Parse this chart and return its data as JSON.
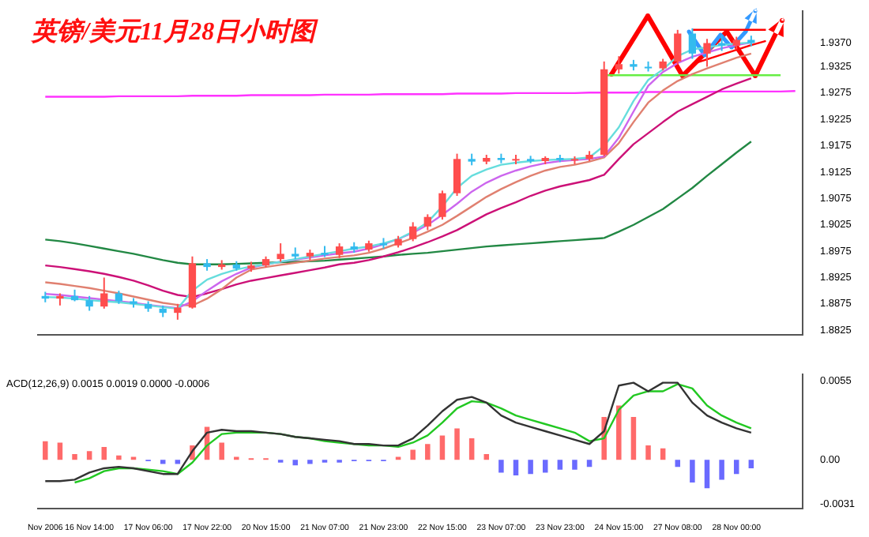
{
  "chart_data": [
    {
      "type": "candlestick",
      "title": "英镑/美元11月28日小时图",
      "categories": [
        null,
        null,
        null,
        null,
        null,
        null,
        null,
        null,
        null,
        null,
        null,
        null,
        null,
        null,
        null,
        null,
        null,
        null,
        null,
        null,
        null,
        null,
        null,
        null,
        null,
        null,
        null,
        null,
        null,
        null,
        null,
        null,
        null,
        null,
        null,
        null,
        null,
        null,
        null,
        null,
        null,
        null,
        null,
        null,
        null,
        null,
        null,
        null,
        null,
        null,
        null,
        null
      ],
      "ohlc": [
        [
          1.889,
          1.8898,
          1.8878,
          1.8885
        ],
        [
          1.8885,
          1.8895,
          1.8872,
          1.889
        ],
        [
          1.889,
          1.8902,
          1.888,
          1.8882
        ],
        [
          1.8882,
          1.889,
          1.8862,
          1.887
        ],
        [
          1.887,
          1.8925,
          1.8866,
          1.8895
        ],
        [
          1.8895,
          1.89,
          1.8875,
          1.888
        ],
        [
          1.888,
          1.8886,
          1.8868,
          1.8875
        ],
        [
          1.8875,
          1.888,
          1.886,
          1.8866
        ],
        [
          1.8866,
          1.8872,
          1.885,
          1.8858
        ],
        [
          1.8858,
          1.8875,
          1.8845,
          1.8868
        ],
        [
          1.8868,
          1.8965,
          1.8866,
          1.8952
        ],
        [
          1.8952,
          1.896,
          1.8938,
          1.8945
        ],
        [
          1.8945,
          1.8958,
          1.894,
          1.895
        ],
        [
          1.895,
          1.8956,
          1.8938,
          1.8942
        ],
        [
          1.8942,
          1.8955,
          1.8936,
          1.8948
        ],
        [
          1.8948,
          1.8965,
          1.8944,
          1.896
        ],
        [
          1.896,
          1.899,
          1.8955,
          1.897
        ],
        [
          1.897,
          1.8982,
          1.896,
          1.8965
        ],
        [
          1.8965,
          1.8978,
          1.8958,
          1.8972
        ],
        [
          1.8972,
          1.8985,
          1.8964,
          1.8968
        ],
        [
          1.8968,
          1.899,
          1.8962,
          1.8984
        ],
        [
          1.8984,
          1.8992,
          1.8972,
          1.8978
        ],
        [
          1.8978,
          1.8995,
          1.8974,
          1.899
        ],
        [
          1.899,
          1.9,
          1.898,
          1.8986
        ],
        [
          1.8986,
          1.9004,
          1.8982,
          1.8998
        ],
        [
          1.8998,
          1.903,
          1.8994,
          1.9022
        ],
        [
          1.9022,
          1.9045,
          1.9015,
          1.904
        ],
        [
          1.904,
          1.909,
          1.9035,
          1.9085
        ],
        [
          1.9085,
          1.916,
          1.908,
          1.915
        ],
        [
          1.915,
          1.916,
          1.9138,
          1.9145
        ],
        [
          1.9145,
          1.9158,
          1.914,
          1.9152
        ],
        [
          1.9152,
          1.916,
          1.9142,
          1.9148
        ],
        [
          1.9148,
          1.9158,
          1.914,
          1.915
        ],
        [
          1.915,
          1.9156,
          1.9142,
          1.9146
        ],
        [
          1.9146,
          1.9155,
          1.914,
          1.9152
        ],
        [
          1.9152,
          1.9158,
          1.9144,
          1.9148
        ],
        [
          1.9148,
          1.9155,
          1.914,
          1.915
        ],
        [
          1.915,
          1.9165,
          1.9146,
          1.9158
        ],
        [
          1.9158,
          1.9335,
          1.9155,
          1.932
        ],
        [
          1.932,
          1.9345,
          1.9312,
          1.933
        ],
        [
          1.933,
          1.9338,
          1.9318,
          1.9325
        ],
        [
          1.9325,
          1.9335,
          1.9316,
          1.9322
        ],
        [
          1.9322,
          1.934,
          1.9318,
          1.9335
        ],
        [
          1.9335,
          1.9395,
          1.933,
          1.9388
        ],
        [
          1.9388,
          1.9398,
          1.934,
          1.935
        ],
        [
          1.935,
          1.9378,
          1.9325,
          1.937
        ],
        [
          1.937,
          1.9385,
          1.9355,
          1.9365
        ],
        [
          1.9365,
          1.9382,
          1.9358,
          1.9376
        ],
        [
          1.9376,
          1.9384,
          1.9364,
          1.937
        ],
        null,
        null,
        null
      ],
      "colors": [
        "#33bbee",
        "#ff4d4d",
        "#33bbee",
        "#33bbee",
        "#ff4d4d",
        "#33bbee",
        "#33bbee",
        "#33bbee",
        "#33bbee",
        "#ff4d4d",
        "#ff4d4d",
        "#33bbee",
        "#ff4d4d",
        "#33bbee",
        "#ff4d4d",
        "#ff4d4d",
        "#ff4d4d",
        "#33bbee",
        "#ff4d4d",
        "#33bbee",
        "#ff4d4d",
        "#33bbee",
        "#ff4d4d",
        "#33bbee",
        "#ff4d4d",
        "#ff4d4d",
        "#ff4d4d",
        "#ff4d4d",
        "#ff4d4d",
        "#33bbee",
        "#ff4d4d",
        "#33bbee",
        "#ff4d4d",
        "#33bbee",
        "#ff4d4d",
        "#33bbee",
        "#ff4d4d",
        "#ff4d4d",
        "#ff4d4d",
        "#ff4d4d",
        "#33bbee",
        "#33bbee",
        "#ff4d4d",
        "#ff4d4d",
        "#33bbee",
        "#ff4d4d",
        "#33bbee",
        "#ff4d4d",
        "#33bbee",
        null,
        null,
        null
      ],
      "series": [
        {
          "type": "line",
          "color": "#66dddd",
          "values": [
            1.8888,
            1.8887,
            1.8885,
            1.8882,
            1.888,
            1.8878,
            1.8875,
            1.8872,
            1.8869,
            1.8866,
            1.89,
            1.8921,
            1.8932,
            1.894,
            1.8946,
            1.895,
            1.8955,
            1.896,
            1.8965,
            1.897,
            1.8975,
            1.898,
            1.8984,
            1.899,
            1.8998,
            1.9012,
            1.903,
            1.906,
            1.9095,
            1.9118,
            1.913,
            1.9139,
            1.9143,
            1.9146,
            1.9148,
            1.9149,
            1.915,
            1.9153,
            1.9175,
            1.921,
            1.926,
            1.93,
            1.932,
            1.9345,
            1.9358,
            1.9362,
            1.9366,
            1.9369,
            1.9371,
            null,
            null,
            null
          ]
        },
        {
          "type": "line",
          "color": "#cc66ee",
          "values": [
            1.8894,
            1.8892,
            1.8889,
            1.8886,
            1.8883,
            1.888,
            1.8877,
            1.8873,
            1.887,
            1.8867,
            1.888,
            1.89,
            1.8918,
            1.8932,
            1.8944,
            1.895,
            1.8955,
            1.8959,
            1.8963,
            1.8967,
            1.8971,
            1.8974,
            1.898,
            1.8988,
            1.8998,
            1.901,
            1.9025,
            1.9044,
            1.9065,
            1.9088,
            1.9105,
            1.9118,
            1.9128,
            1.9136,
            1.9142,
            1.9146,
            1.9148,
            1.915,
            1.9155,
            1.919,
            1.924,
            1.9289,
            1.9315,
            1.9332,
            1.9344,
            1.9352,
            1.936,
            1.9366,
            1.9371,
            null,
            null,
            null
          ]
        },
        {
          "type": "line",
          "color": "#e08070",
          "values": [
            1.8916,
            1.8913,
            1.8909,
            1.8905,
            1.89,
            1.8895,
            1.8889,
            1.8883,
            1.8877,
            1.8873,
            1.8872,
            1.8885,
            1.8903,
            1.8925,
            1.894,
            1.8945,
            1.8949,
            1.8953,
            1.8957,
            1.8961,
            1.8964,
            1.8967,
            1.8972,
            1.898,
            1.899,
            1.9,
            1.9012,
            1.9025,
            1.9042,
            1.906,
            1.9078,
            1.9093,
            1.9106,
            1.9118,
            1.9128,
            1.9135,
            1.9139,
            1.9145,
            1.9153,
            1.918,
            1.922,
            1.9257,
            1.928,
            1.9298,
            1.9311,
            1.9322,
            1.9332,
            1.9342,
            1.935,
            null,
            null,
            null
          ]
        },
        {
          "type": "line",
          "color": "#cc1177",
          "values": [
            1.8948,
            1.8945,
            1.8941,
            1.8937,
            1.8932,
            1.8926,
            1.8919,
            1.891,
            1.89,
            1.8892,
            1.8888,
            1.8895,
            1.8903,
            1.8912,
            1.8919,
            1.8924,
            1.8929,
            1.8934,
            1.8939,
            1.8944,
            1.895,
            1.8953,
            1.8958,
            1.8965,
            1.8973,
            1.8982,
            1.8992,
            1.9003,
            1.9015,
            1.903,
            1.9045,
            1.9057,
            1.9068,
            1.908,
            1.909,
            1.9098,
            1.9104,
            1.911,
            1.912,
            1.915,
            1.9178,
            1.9199,
            1.922,
            1.924,
            1.9254,
            1.9268,
            1.9282,
            1.9293,
            1.9303,
            null,
            null,
            null
          ]
        },
        {
          "type": "line",
          "color": "#228844",
          "values": [
            1.8997,
            1.8994,
            1.899,
            1.8985,
            1.898,
            1.8975,
            1.897,
            1.8964,
            1.8958,
            1.8953,
            1.895,
            1.895,
            1.895,
            1.8951,
            1.8952,
            1.8953,
            1.8954,
            1.8955,
            1.8956,
            1.8957,
            1.8959,
            1.8961,
            1.8963,
            1.8965,
            1.8968,
            1.897,
            1.8972,
            1.8975,
            1.8978,
            1.8981,
            1.8984,
            1.8986,
            1.8988,
            1.899,
            1.8992,
            1.8994,
            1.8996,
            1.8998,
            1.9,
            1.9012,
            1.9025,
            1.904,
            1.9055,
            1.9075,
            1.9095,
            1.9118,
            1.914,
            1.9162,
            1.9183,
            null,
            null,
            null
          ]
        },
        {
          "type": "line",
          "color": "#ff33ff",
          "values": [
            1.9268,
            1.9268,
            1.9268,
            1.9268,
            1.9268,
            1.9269,
            1.9269,
            1.9269,
            1.9269,
            1.9269,
            1.927,
            1.927,
            1.927,
            1.927,
            1.9271,
            1.9271,
            1.9271,
            1.9271,
            1.9271,
            1.9272,
            1.9272,
            1.9272,
            1.9272,
            1.9273,
            1.9273,
            1.9273,
            1.9273,
            1.9273,
            1.9274,
            1.9274,
            1.9274,
            1.9274,
            1.9275,
            1.9275,
            1.9275,
            1.9275,
            1.9275,
            1.9276,
            1.9276,
            1.9276,
            1.9276,
            1.9277,
            1.9277,
            1.9277,
            1.9277,
            1.9277,
            1.9278,
            1.9278,
            1.9278,
            1.9278,
            1.9278,
            1.9279
          ]
        },
        {
          "type": "line",
          "color": "#66ee44",
          "values": [
            null,
            null,
            null,
            null,
            null,
            null,
            null,
            null,
            null,
            null,
            null,
            null,
            null,
            null,
            null,
            null,
            null,
            null,
            null,
            null,
            null,
            null,
            null,
            null,
            null,
            null,
            null,
            null,
            null,
            null,
            null,
            null,
            null,
            null,
            null,
            null,
            null,
            null,
            1.9309,
            1.9309,
            1.9309,
            1.9309,
            1.9309,
            1.9309,
            1.9309,
            1.9309,
            1.9309,
            1.9309,
            1.9309,
            1.9309,
            1.9309,
            null
          ]
        },
        {
          "type": "line",
          "color": "#ff0000",
          "values": [
            null,
            null,
            null,
            null,
            null,
            null,
            null,
            null,
            null,
            null,
            null,
            null,
            null,
            null,
            null,
            null,
            null,
            null,
            null,
            null,
            null,
            null,
            null,
            null,
            null,
            null,
            null,
            null,
            null,
            null,
            null,
            null,
            null,
            null,
            null,
            null,
            null,
            null,
            null,
            null,
            null,
            null,
            null,
            null,
            1.9395,
            1.9395,
            1.9395,
            1.9395,
            1.9395,
            1.9395,
            null,
            null
          ]
        },
        {
          "type": "line",
          "color": "#ff0000",
          "values": [
            null,
            null,
            null,
            null,
            null,
            null,
            null,
            null,
            null,
            null,
            null,
            null,
            null,
            null,
            null,
            null,
            null,
            null,
            null,
            null,
            null,
            null,
            null,
            null,
            null,
            null,
            null,
            null,
            null,
            null,
            null,
            null,
            null,
            null,
            null,
            null,
            null,
            null,
            null,
            null,
            null,
            null,
            null,
            null,
            1.933,
            1.9339,
            1.9348,
            1.9357,
            1.9366,
            1.9374,
            null,
            null
          ]
        }
      ],
      "ylim": [
        1.8817,
        1.9431
      ],
      "yticks": [
        1.8825,
        1.8875,
        1.8925,
        1.8975,
        1.9025,
        1.9075,
        1.9125,
        1.9175,
        1.9225,
        1.9275,
        1.9325,
        {
          "value": 1.937,
          "label": "1.9370"
        }
      ]
    },
    {
      "type": "bar",
      "title": "ACD(12,26,9) 0.0015 0.0019 0.0000 -0.0006",
      "categories": [
        "Nov 2006",
        null,
        null,
        "16 Nov 14:00",
        null,
        null,
        null,
        "17 Nov 06:00",
        null,
        null,
        null,
        "17 Nov 22:00",
        null,
        null,
        null,
        "20 Nov 15:00",
        null,
        null,
        null,
        "21 Nov 07:00",
        null,
        null,
        null,
        "21 Nov 23:00",
        null,
        null,
        null,
        "22 Nov 15:00",
        null,
        null,
        null,
        "23 Nov 07:00",
        null,
        null,
        null,
        "23 Nov 23:00",
        null,
        null,
        null,
        "24 Nov 15:00",
        null,
        null,
        null,
        "27 Nov 08:00",
        null,
        null,
        null,
        "28 Nov 00:00",
        null,
        null,
        null,
        null
      ],
      "series": [
        {
          "type": "bar",
          "values": [
            0.0013,
            0.0012,
            0.0004,
            0.0006,
            0.0009,
            0.0003,
            0.0002,
            -0.0001,
            -0.0003,
            -0.0003,
            0.001,
            0.0023,
            0.0012,
            0.0002,
            0.0001,
            0.0001,
            -0.0002,
            -0.0004,
            -0.0003,
            -0.0002,
            -0.0002,
            -0.0001,
            -0.0001,
            -0.0001,
            0.0002,
            0.0007,
            0.0011,
            0.0017,
            0.0022,
            0.0015,
            0.0004,
            -0.0009,
            -0.0011,
            -0.001,
            -0.0009,
            -0.0007,
            -0.0007,
            -0.0005,
            0.003,
            0.0038,
            0.003,
            0.001,
            0.0008,
            -0.0005,
            -0.0016,
            -0.002,
            -0.0014,
            -0.001,
            -0.0006,
            null,
            null,
            null
          ],
          "colors": [
            "#ff6a6a",
            "#ff6a6a",
            "#ff6a6a",
            "#ff6a6a",
            "#ff6a6a",
            "#ff6a6a",
            "#ff6a6a",
            "#6a6aff",
            "#6a6aff",
            "#6a6aff",
            "#ff6a6a",
            "#ff6a6a",
            "#ff6a6a",
            "#ff6a6a",
            "#ff6a6a",
            "#ff6a6a",
            "#6a6aff",
            "#6a6aff",
            "#6a6aff",
            "#6a6aff",
            "#6a6aff",
            "#6a6aff",
            "#6a6aff",
            "#6a6aff",
            "#ff6a6a",
            "#ff6a6a",
            "#ff6a6a",
            "#ff6a6a",
            "#ff6a6a",
            "#ff6a6a",
            "#ff6a6a",
            "#6a6aff",
            "#6a6aff",
            "#6a6aff",
            "#6a6aff",
            "#6a6aff",
            "#6a6aff",
            "#6a6aff",
            "#ff6a6a",
            "#ff6a6a",
            "#ff6a6a",
            "#ff6a6a",
            "#ff6a6a",
            "#6a6aff",
            "#6a6aff",
            "#6a6aff",
            "#6a6aff",
            "#6a6aff",
            "#6a6aff",
            null,
            null,
            null
          ]
        },
        {
          "type": "line",
          "color": "#333333",
          "values": [
            -0.0015,
            -0.0015,
            -0.0014,
            -0.0009,
            -0.0006,
            -0.0005,
            -0.0006,
            -0.0008,
            -0.001,
            -0.001,
            0.0006,
            0.0019,
            0.0021,
            0.002,
            0.002,
            0.0019,
            0.0018,
            0.0016,
            0.0015,
            0.0014,
            0.0013,
            0.0011,
            0.0011,
            0.001,
            0.001,
            0.0015,
            0.0024,
            0.0034,
            0.0042,
            0.0044,
            0.004,
            0.0031,
            0.0026,
            0.0023,
            0.002,
            0.0017,
            0.0014,
            0.0011,
            0.002,
            0.0052,
            0.0054,
            0.0048,
            0.0054,
            0.0054,
            0.004,
            0.0031,
            0.0026,
            0.0022,
            0.0019,
            null,
            null,
            null
          ]
        },
        {
          "type": "line",
          "color": "#22c822",
          "values": [
            null,
            null,
            -0.0016,
            -0.0013,
            -0.0008,
            -0.0006,
            -0.0006,
            -0.0007,
            -0.0008,
            -0.001,
            -0.0002,
            0.001,
            0.0018,
            0.0019,
            0.0019,
            0.0019,
            0.0018,
            0.0016,
            0.0015,
            0.0013,
            0.0012,
            0.0011,
            0.001,
            0.001,
            0.0009,
            0.0012,
            0.0017,
            0.0026,
            0.0036,
            0.0041,
            0.004,
            0.0036,
            0.0031,
            0.0028,
            0.0025,
            0.0022,
            0.0019,
            0.0013,
            0.0015,
            0.0035,
            0.0045,
            0.0048,
            0.0048,
            0.0053,
            0.005,
            0.0038,
            0.0031,
            0.0026,
            0.0022,
            null,
            null,
            null
          ]
        }
      ],
      "ylim": [
        -0.0034,
        0.006
      ],
      "yticks": [
        0.0055,
        {
          "value": 0,
          "label": "0.00"
        },
        -0.0031
      ]
    }
  ]
}
